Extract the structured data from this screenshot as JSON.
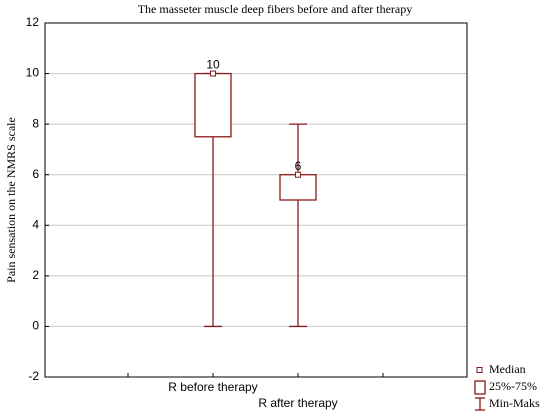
{
  "chart_data": {
    "type": "box",
    "title": "The masseter muscle deep fibers before and after therapy",
    "y_label": "Pain sensation on the NMRS scale",
    "categories": [
      "R before therapy",
      "R after therapy"
    ],
    "boxes": [
      {
        "min": 0,
        "q1": 7.5,
        "median": 10,
        "q3": 10,
        "max": 10
      },
      {
        "min": 0,
        "q1": 5,
        "median": 6,
        "q3": 6,
        "max": 8
      }
    ],
    "color": "#8b1a1a",
    "ylim": [
      -2,
      12
    ],
    "yticks": [
      -2,
      0,
      2,
      4,
      6,
      8,
      10,
      12
    ],
    "grid": true,
    "legend": {
      "median": "Median",
      "box": "25%-75%",
      "whisker": "Min-Maks"
    },
    "legend_position": "bottom-right"
  }
}
